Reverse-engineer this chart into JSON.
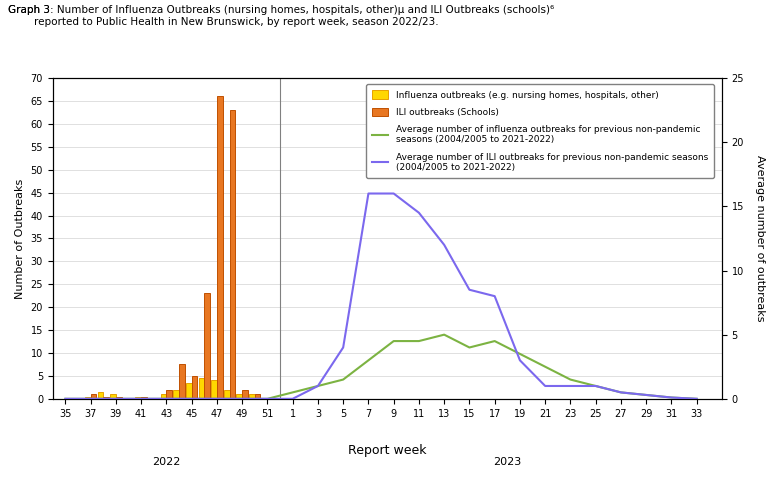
{
  "xlabel": "Report week",
  "ylabel_left": "Number of Outbreaks",
  "ylabel_right": "Average number of outbreaks",
  "ylim_left": [
    0,
    70
  ],
  "ylim_right": [
    0,
    25
  ],
  "yticks_left": [
    0,
    5,
    10,
    15,
    20,
    25,
    30,
    35,
    40,
    45,
    50,
    55,
    60,
    65,
    70
  ],
  "yticks_right": [
    0.0,
    5.0,
    10.0,
    15.0,
    20.0,
    25.0
  ],
  "xtick_labels": [
    "35",
    "37",
    "39",
    "41",
    "43",
    "45",
    "47",
    "49",
    "51",
    "1",
    "3",
    "5",
    "7",
    "9",
    "11",
    "13",
    "15",
    "17",
    "19",
    "21",
    "23",
    "25",
    "27",
    "29",
    "31",
    "33"
  ],
  "xtick_positions": [
    35,
    37,
    39,
    41,
    43,
    45,
    47,
    49,
    51,
    53,
    55,
    57,
    59,
    61,
    63,
    65,
    67,
    69,
    71,
    73,
    75,
    77,
    79,
    81,
    83,
    85
  ],
  "influenza_bar_x": [
    37,
    38,
    39,
    41,
    43,
    44,
    45,
    46,
    47,
    48,
    49,
    50
  ],
  "influenza_bar_values": [
    0.5,
    1.5,
    1.0,
    0.5,
    1.0,
    2.0,
    3.5,
    4.5,
    4.0,
    2.0,
    1.0,
    1.0
  ],
  "ili_bar_x": [
    37,
    38,
    39,
    41,
    43,
    44,
    45,
    46,
    47,
    48,
    49,
    50
  ],
  "ili_bar_values": [
    1.0,
    0.5,
    0.5,
    0.5,
    2.0,
    7.5,
    5.0,
    23.0,
    66.0,
    63.0,
    2.0,
    1.0
  ],
  "avg_influenza_x": [
    35,
    37,
    39,
    41,
    43,
    45,
    47,
    49,
    51,
    53,
    55,
    57,
    59,
    61,
    63,
    65,
    67,
    69,
    71,
    73,
    75,
    77,
    79,
    81,
    83,
    85
  ],
  "avg_influenza_y": [
    0.0,
    0.0,
    0.0,
    0.0,
    0.0,
    0.0,
    0.0,
    0.0,
    0.0,
    0.5,
    1.0,
    1.5,
    3.0,
    4.5,
    4.5,
    5.0,
    4.0,
    4.5,
    3.5,
    2.5,
    1.5,
    1.0,
    0.5,
    0.3,
    0.1,
    0.0
  ],
  "avg_ili_x": [
    35,
    37,
    39,
    41,
    43,
    45,
    47,
    49,
    51,
    53,
    55,
    57,
    59,
    61,
    63,
    65,
    67,
    69,
    71,
    73,
    75,
    77,
    79,
    81,
    83,
    85
  ],
  "avg_ili_y": [
    0.0,
    0.0,
    0.0,
    0.0,
    0.0,
    0.0,
    0.0,
    0.0,
    0.0,
    0.0,
    1.0,
    4.0,
    16.0,
    16.0,
    14.5,
    12.0,
    8.5,
    8.0,
    3.0,
    1.0,
    1.0,
    1.0,
    0.5,
    0.3,
    0.1,
    0.0
  ],
  "influenza_bar_color": "#FFD700",
  "influenza_bar_edge_color": "#E8A000",
  "ili_bar_color": "#E87722",
  "ili_bar_edge_color": "#C05000",
  "avg_influenza_color": "#7CB342",
  "avg_ili_color": "#7B68EE",
  "background_color": "#FFFFFF",
  "label_influenza": "Influenza outbreaks (e.g. nursing homes, hospitals, other)",
  "label_ili": "ILI outbreaks (Schools)",
  "label_avg_influenza": "Average number of influenza outbreaks for previous non-pandemic\nseasons (2004/2005 to 2021-2022)",
  "label_avg_ili": "Average number of ILI outbreaks for previous non-pandemic seasons\n(2004/2005 to 2021-2022)",
  "xlim": [
    34,
    87
  ],
  "separator_x": 52,
  "year2022_x": 43,
  "year2023_x": 70,
  "fig_width": 7.8,
  "fig_height": 4.92,
  "dpi": 100
}
